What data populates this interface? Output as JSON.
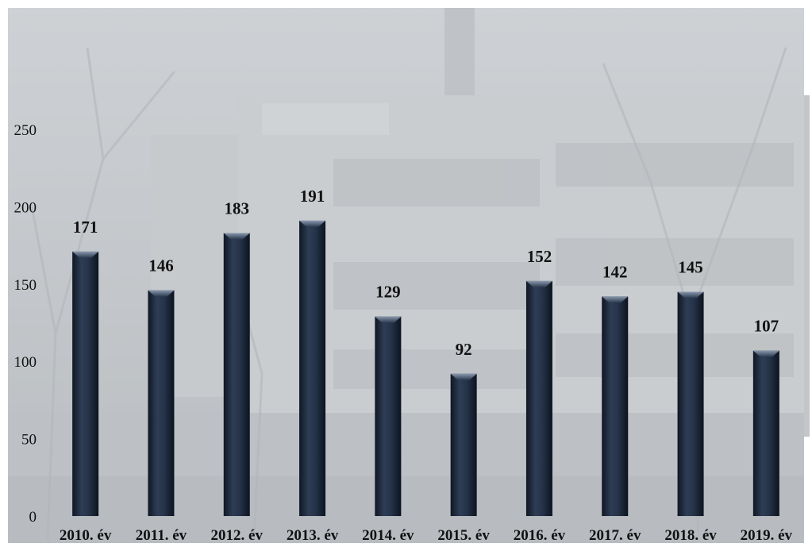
{
  "chart_data": {
    "type": "bar",
    "title": "",
    "xlabel": "",
    "ylabel": "",
    "categories": [
      "2010. év",
      "2011. év",
      "2012. év",
      "2013. év",
      "2014. év",
      "2015. év",
      "2016. év",
      "2017. év",
      "2018. év",
      "2019. év"
    ],
    "values": [
      171,
      146,
      183,
      191,
      129,
      92,
      152,
      142,
      145,
      107
    ],
    "ylim": [
      0,
      250
    ],
    "yticks": [
      0,
      50,
      100,
      150,
      200,
      250
    ],
    "data_labels": true,
    "grid": false,
    "legend": "none",
    "colors": {
      "bar": "#1e2a3c",
      "bar_highlight": "#5a6a82",
      "background": "#b9bcc0",
      "background_overlay": "#d6d9dc"
    },
    "background_image": "faded photo of a multi-storey building behind bare trees"
  }
}
